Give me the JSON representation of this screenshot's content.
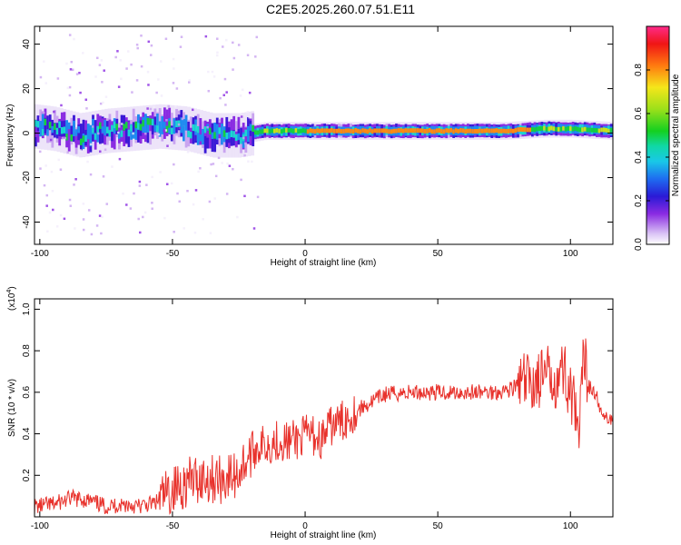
{
  "figure": {
    "title": "C2E5.2025.260.07.51.E11"
  },
  "chart_data": [
    {
      "type": "heatmap",
      "title": "",
      "xlabel": "Height of straight line (km)",
      "ylabel": "Frequency (Hz)",
      "xlim": [
        -102,
        116
      ],
      "ylim": [
        -50,
        48
      ],
      "x_ticks": [
        -100,
        -50,
        0,
        50,
        100
      ],
      "x_tick_labels": [
        "-100",
        "-50",
        "0",
        "50",
        "100"
      ],
      "y_ticks": [
        -40,
        -20,
        0,
        20,
        40
      ],
      "y_tick_labels": [
        "-40",
        "-20",
        "0",
        "20",
        "40"
      ],
      "band_center_hz": [
        [
          -102,
          3
        ],
        [
          -95,
          2
        ],
        [
          -85,
          -1
        ],
        [
          -75,
          1
        ],
        [
          -65,
          2
        ],
        [
          -55,
          3
        ],
        [
          -45,
          2
        ],
        [
          -35,
          -1
        ],
        [
          -25,
          -1
        ],
        [
          -15,
          1
        ],
        [
          -5,
          1
        ],
        [
          0,
          1
        ],
        [
          25,
          1
        ],
        [
          50,
          1
        ],
        [
          75,
          1
        ],
        [
          90,
          2
        ],
        [
          100,
          2
        ],
        [
          116,
          1
        ]
      ],
      "colorbar": {
        "label": "Normalized spectral amplitude",
        "range": [
          0,
          1
        ],
        "ticks": [
          0.0,
          0.2,
          0.4,
          0.6,
          0.8
        ],
        "tick_labels": [
          "0.0",
          "0.2",
          "0.4",
          "0.6",
          "0.8"
        ]
      }
    },
    {
      "type": "line",
      "title": "",
      "xlabel": "Height of straight line (km)",
      "ylabel": "SNR (10 * v/v)",
      "y_multiplier": "(x10",
      "y_multiplier_exp": "4",
      "y_multiplier_close": ")",
      "xlim": [
        -102,
        116
      ],
      "ylim": [
        0.0,
        1.05
      ],
      "x_ticks": [
        -100,
        -50,
        0,
        50,
        100
      ],
      "x_tick_labels": [
        "-100",
        "-50",
        "0",
        "50",
        "100"
      ],
      "y_ticks": [
        0.2,
        0.4,
        0.6,
        0.8,
        1.0
      ],
      "y_tick_labels": [
        "0.2",
        "0.4",
        "0.6",
        "0.8",
        "1.0"
      ],
      "color": "#e8322c",
      "series": [
        {
          "name": "SNR",
          "x": [
            -102,
            -95,
            -88,
            -82,
            -75,
            -68,
            -62,
            -56,
            -50,
            -44,
            -38,
            -32,
            -26,
            -22,
            -18,
            -14,
            -10,
            -6,
            -2,
            2,
            6,
            10,
            14,
            18,
            22,
            26,
            30,
            40,
            50,
            60,
            70,
            76,
            82,
            88,
            94,
            98,
            101,
            103,
            105,
            108,
            110,
            112,
            116
          ],
          "y": [
            0.05,
            0.06,
            0.09,
            0.08,
            0.05,
            0.06,
            0.05,
            0.07,
            0.13,
            0.17,
            0.19,
            0.18,
            0.2,
            0.28,
            0.34,
            0.35,
            0.37,
            0.36,
            0.38,
            0.4,
            0.37,
            0.44,
            0.46,
            0.5,
            0.53,
            0.56,
            0.59,
            0.6,
            0.6,
            0.6,
            0.6,
            0.61,
            0.64,
            0.66,
            0.68,
            0.7,
            0.55,
            0.35,
            0.75,
            0.62,
            0.58,
            0.48,
            0.47
          ]
        }
      ]
    }
  ],
  "colors": {
    "line": "#e8322c",
    "axis": "#000000",
    "background": "#ffffff"
  }
}
